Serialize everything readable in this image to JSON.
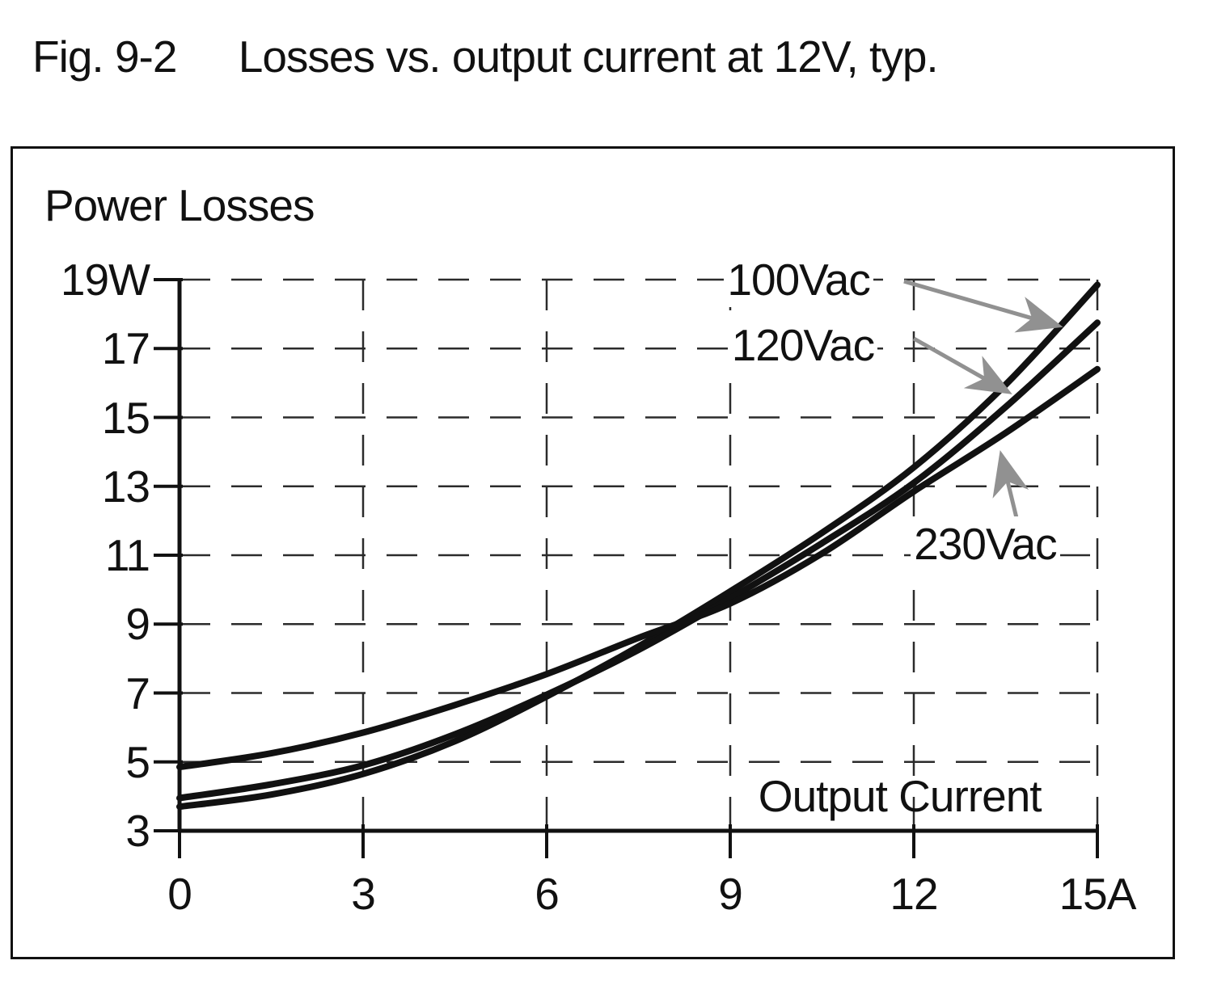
{
  "figure": {
    "fig_label": "Fig. 9-2",
    "title": "Losses vs. output current at 12V, typ."
  },
  "chart_data": {
    "type": "line",
    "ylabel": "Power Losses",
    "xlabel": "Output Current",
    "y_unit": "W",
    "x_unit": "A",
    "xlim": [
      0,
      15
    ],
    "ylim": [
      3,
      19
    ],
    "x_ticks": [
      0,
      3,
      6,
      9,
      12,
      15
    ],
    "x_tick_labels": [
      "0",
      "3",
      "6",
      "9",
      "12",
      "15A"
    ],
    "y_ticks": [
      19,
      17,
      15,
      13,
      11,
      9,
      7,
      5,
      3
    ],
    "y_tick_labels": [
      "19W",
      "17",
      "15",
      "13",
      "11",
      "9",
      "7",
      "5",
      "3"
    ],
    "grid": "dashed",
    "x": [
      0,
      1.5,
      3,
      4.5,
      6,
      7.5,
      9,
      10.5,
      12,
      13.5,
      15
    ],
    "series": [
      {
        "name": "100Vac",
        "values": [
          3.7,
          4.05,
          4.65,
          5.6,
          6.9,
          8.35,
          9.95,
          11.65,
          13.55,
          15.95,
          18.85
        ]
      },
      {
        "name": "120Vac",
        "values": [
          3.95,
          4.35,
          4.9,
          5.8,
          6.95,
          8.25,
          9.75,
          11.35,
          13.1,
          15.3,
          17.75
        ]
      },
      {
        "name": "230Vac",
        "values": [
          4.85,
          5.25,
          5.85,
          6.65,
          7.55,
          8.6,
          9.6,
          11.05,
          12.85,
          14.55,
          16.4
        ]
      }
    ],
    "annotations": [
      {
        "series": "100Vac",
        "text_at": [
          8.9,
          18.98
        ],
        "arrow_from": [
          11.84,
          18.95
        ],
        "arrow_to": [
          14.44,
          17.62
        ]
      },
      {
        "series": "120Vac",
        "text_at": [
          8.97,
          17.08
        ],
        "arrow_from": [
          12.0,
          17.29
        ],
        "arrow_to": [
          13.61,
          15.67
        ]
      },
      {
        "series": "230Vac",
        "text_at": [
          11.95,
          11.3
        ],
        "arrow_from": [
          13.69,
          12.0
        ],
        "arrow_to": [
          13.41,
          14.05
        ]
      }
    ],
    "xlabel_at": [
      9.46,
      3.99
    ]
  },
  "colors": {
    "line": "#111111",
    "grid": "#2b2b2b",
    "axis": "#111111",
    "arrow": "#919191",
    "background": "#ffffff"
  }
}
